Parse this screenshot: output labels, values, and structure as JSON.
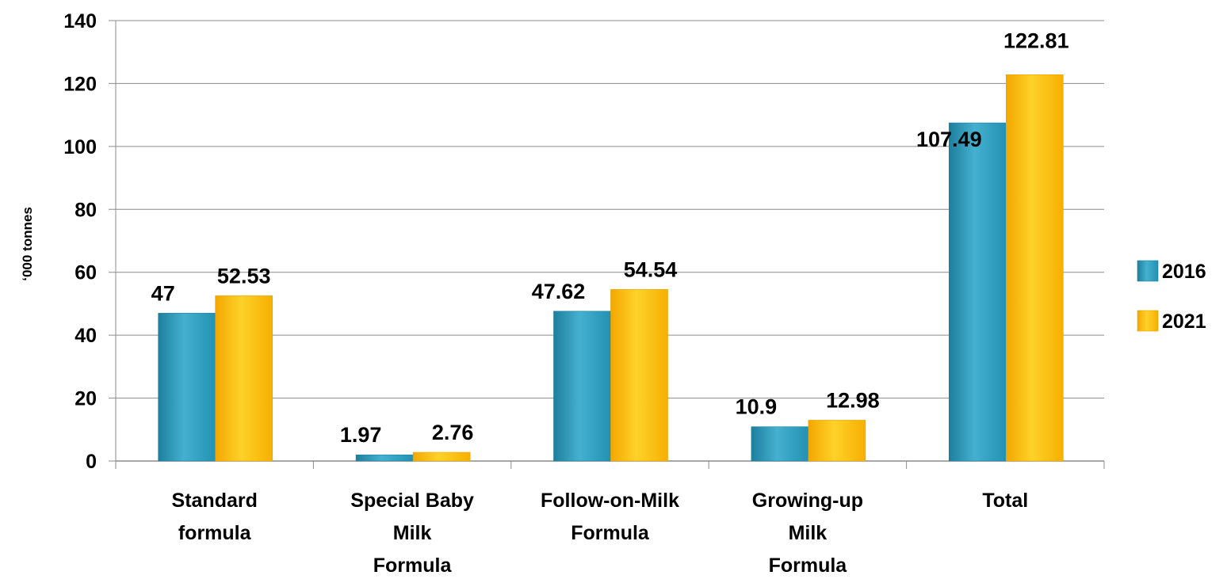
{
  "chart_data": {
    "type": "bar",
    "title": "",
    "xlabel": "",
    "ylabel": "‘000 tonnes",
    "ylim": [
      0,
      140
    ],
    "yticks": [
      0,
      20,
      40,
      60,
      80,
      100,
      120,
      140
    ],
    "grid": true,
    "legend_position": "right",
    "categories": [
      [
        "Standard",
        "formula"
      ],
      [
        "Special Baby",
        "Milk",
        "Formula"
      ],
      [
        "Follow-on-Milk",
        "Formula"
      ],
      [
        "Growing-up",
        "Milk",
        "Formula"
      ],
      [
        "Total"
      ]
    ],
    "series": [
      {
        "name": "2016",
        "color": "#31a2c2",
        "values": [
          47,
          1.97,
          47.62,
          10.9,
          107.49
        ],
        "labels": [
          "47",
          "1.97",
          "47.62",
          "10.9",
          "107.49"
        ]
      },
      {
        "name": "2021",
        "color": "#fbbd12",
        "values": [
          52.53,
          2.76,
          54.54,
          12.98,
          122.81
        ],
        "labels": [
          "52.53",
          "2.76",
          "54.54",
          "12.98",
          "122.81"
        ]
      }
    ]
  }
}
